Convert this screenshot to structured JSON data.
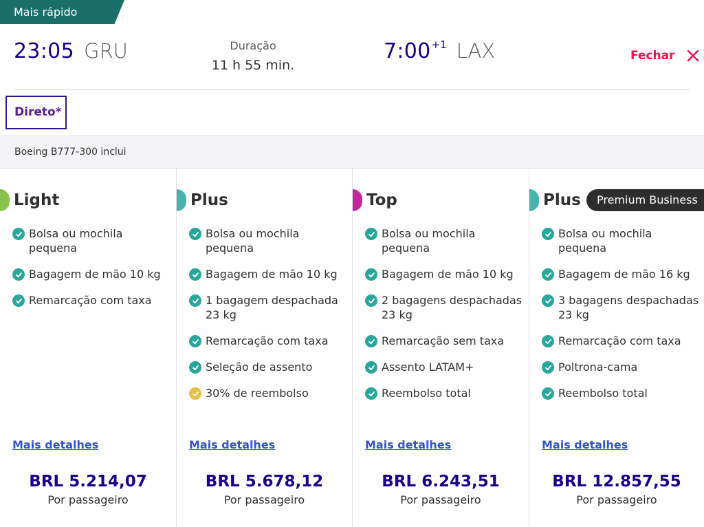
{
  "colors": {
    "brand_navy": "#1b0088",
    "accent_red": "#e8114b",
    "tag_teal": "#1b6f6b",
    "check_teal": "#2aa69c",
    "check_yellow": "#e5c04a",
    "light_green": "#8bc34a",
    "plus_teal": "#46b3ad",
    "top_magenta": "#c2259c"
  },
  "tag": {
    "label": "Mais rápido"
  },
  "flight": {
    "departure_time": "23:05",
    "departure_code": "GRU",
    "duration_label": "Duração",
    "duration_value": "11 h 55 min.",
    "arrival_time": "7:00",
    "arrival_day_offset": "+1",
    "arrival_code": "LAX",
    "close_label": "Fechar",
    "close_icon": "close-x-icon"
  },
  "stops_badge": "Direto*",
  "aircraft_text": "Boeing B777-300 inclui",
  "fares": [
    {
      "name": "Light",
      "accent": "#8bc34a",
      "badge": "",
      "benefits": [
        {
          "text": "Bolsa ou mochila pequena",
          "status": "included"
        },
        {
          "text": "Bagagem de mão 10 kg",
          "status": "included"
        },
        {
          "text": "Remarcação com taxa",
          "status": "included"
        }
      ],
      "details_link": "Mais detalhes",
      "price": "BRL 5.214,07",
      "price_note": "Por passageiro"
    },
    {
      "name": "Plus",
      "accent": "#46b3ad",
      "badge": "",
      "benefits": [
        {
          "text": "Bolsa ou mochila pequena",
          "status": "included"
        },
        {
          "text": "Bagagem de mão 10 kg",
          "status": "included"
        },
        {
          "text": "1 bagagem despachada 23 kg",
          "status": "included"
        },
        {
          "text": "Remarcação com taxa",
          "status": "included"
        },
        {
          "text": "Seleção de assento",
          "status": "included"
        },
        {
          "text": "30% de reembolso",
          "status": "partial"
        }
      ],
      "details_link": "Mais detalhes",
      "price": "BRL 5.678,12",
      "price_note": "Por passageiro"
    },
    {
      "name": "Top",
      "accent": "#c2259c",
      "badge": "",
      "benefits": [
        {
          "text": "Bolsa ou mochila pequena",
          "status": "included"
        },
        {
          "text": "Bagagem de mão 10 kg",
          "status": "included"
        },
        {
          "text": "2 bagagens despachadas 23 kg",
          "status": "included"
        },
        {
          "text": "Remarcação sem taxa",
          "status": "included"
        },
        {
          "text": "Assento LATAM+",
          "status": "included"
        },
        {
          "text": "Reembolso total",
          "status": "included"
        }
      ],
      "details_link": "Mais detalhes",
      "price": "BRL 6.243,51",
      "price_note": "Por passageiro"
    },
    {
      "name": "Plus",
      "accent": "#46b3ad",
      "badge": "Premium Business",
      "benefits": [
        {
          "text": "Bolsa ou mochila pequena",
          "status": "included"
        },
        {
          "text": "Bagagem de mão 16 kg",
          "status": "included"
        },
        {
          "text": "3 bagagens despachadas 23 kg",
          "status": "included"
        },
        {
          "text": "Remarcação com taxa",
          "status": "included"
        },
        {
          "text": "Poltrona-cama",
          "status": "included"
        },
        {
          "text": "Reembolso total",
          "status": "included"
        }
      ],
      "details_link": "Mais detalhes",
      "price": "BRL 12.857,55",
      "price_note": "Por passageiro"
    }
  ]
}
